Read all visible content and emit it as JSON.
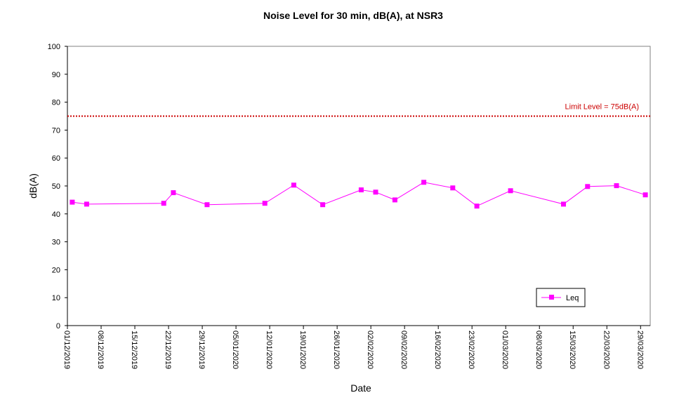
{
  "chart_data": {
    "type": "line",
    "title": "Noise Level for 30 min, dB(A), at NSR3",
    "xlabel": "Date",
    "ylabel": "dB(A)",
    "ylim": [
      0,
      100
    ],
    "yticks": [
      0,
      10,
      20,
      30,
      40,
      50,
      60,
      70,
      80,
      90,
      100
    ],
    "xlim": [
      "2019-12-01",
      "2020-03-31"
    ],
    "xticks": [
      "01/12/2019",
      "08/12/2019",
      "15/12/2019",
      "22/12/2019",
      "29/12/2019",
      "05/01/2020",
      "12/01/2020",
      "19/01/2020",
      "26/01/2020",
      "02/02/2020",
      "09/02/2020",
      "16/02/2020",
      "23/02/2020",
      "01/03/2020",
      "08/03/2020",
      "15/03/2020",
      "22/03/2020",
      "29/03/2020"
    ],
    "grid": false,
    "legend_position": "bottom-right",
    "series": [
      {
        "name": "Leq",
        "color": "#ff00ff",
        "marker": "square",
        "points": [
          {
            "x": "2019-12-02",
            "y": 44.2
          },
          {
            "x": "2019-12-05",
            "y": 43.5
          },
          {
            "x": "2019-12-21",
            "y": 43.8
          },
          {
            "x": "2019-12-23",
            "y": 47.6
          },
          {
            "x": "2019-12-30",
            "y": 43.3
          },
          {
            "x": "2020-01-11",
            "y": 43.8
          },
          {
            "x": "2020-01-17",
            "y": 50.3
          },
          {
            "x": "2020-01-23",
            "y": 43.3
          },
          {
            "x": "2020-01-31",
            "y": 48.6
          },
          {
            "x": "2020-02-03",
            "y": 47.8
          },
          {
            "x": "2020-02-07",
            "y": 45.0
          },
          {
            "x": "2020-02-13",
            "y": 51.3
          },
          {
            "x": "2020-02-19",
            "y": 49.3
          },
          {
            "x": "2020-02-24",
            "y": 42.8
          },
          {
            "x": "2020-03-02",
            "y": 48.3
          },
          {
            "x": "2020-03-13",
            "y": 43.5
          },
          {
            "x": "2020-03-18",
            "y": 49.8
          },
          {
            "x": "2020-03-24",
            "y": 50.1
          },
          {
            "x": "2020-03-30",
            "y": 46.8
          }
        ]
      }
    ],
    "reference_lines": [
      {
        "y": 75,
        "label": "Limit Level  = 75dB(A)",
        "color": "#cc0000",
        "style": "dotted"
      }
    ]
  }
}
